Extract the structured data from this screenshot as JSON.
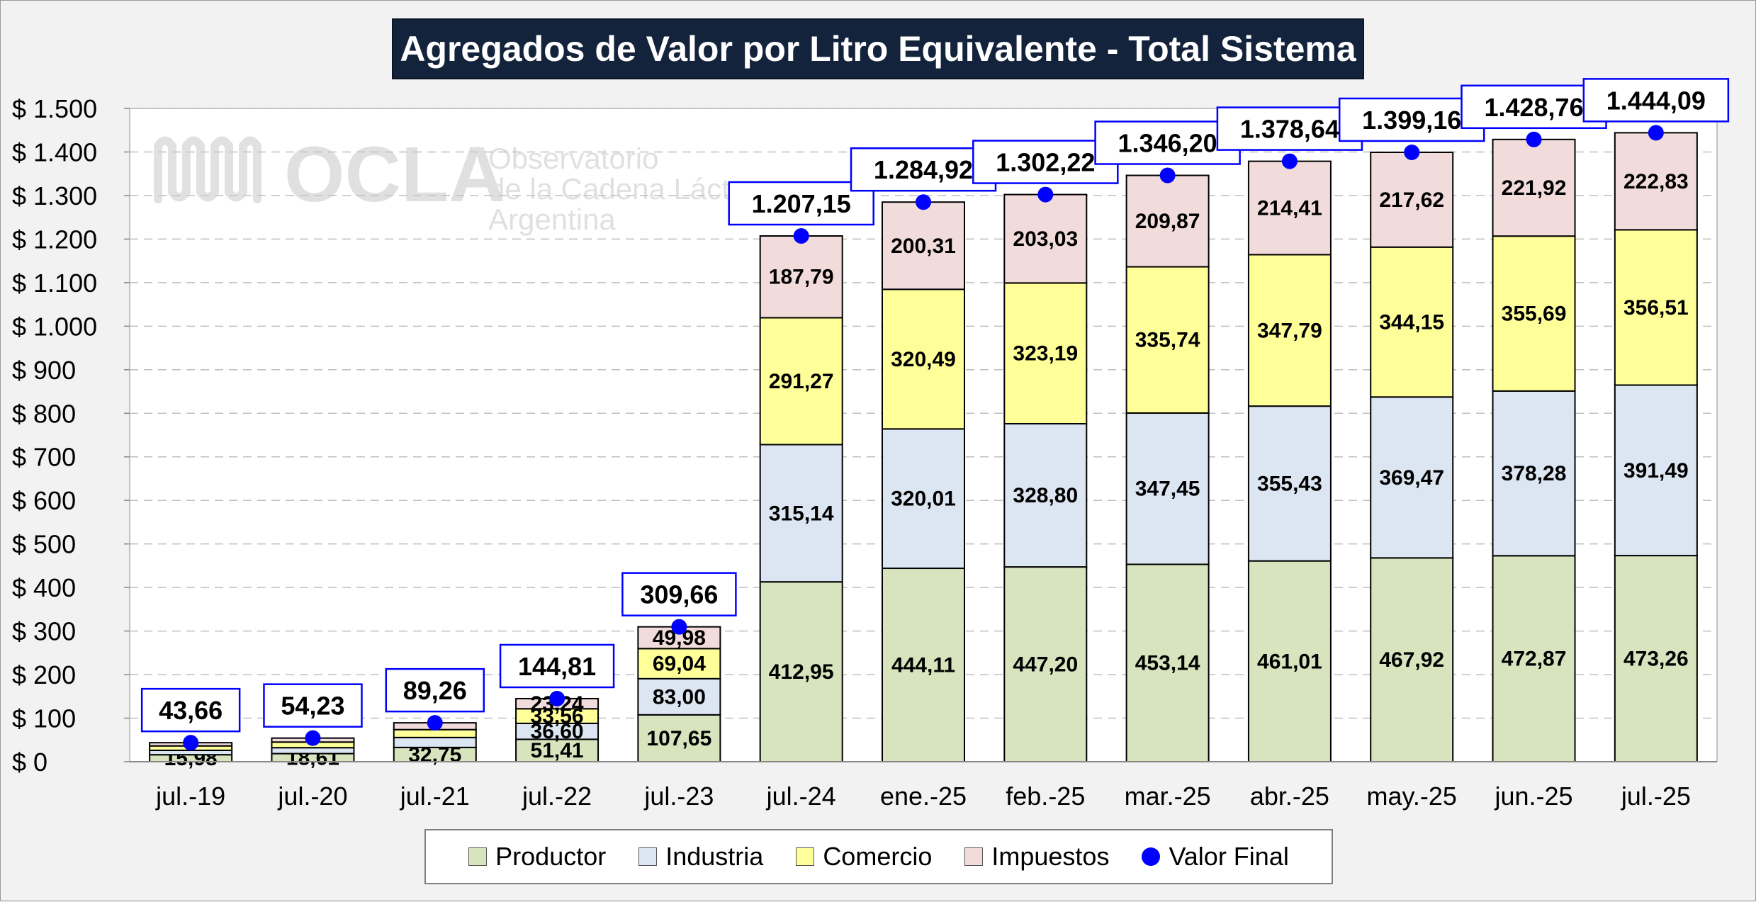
{
  "chart_data": {
    "type": "bar",
    "stacked": true,
    "title": "Agregados de Valor por Litro Equivalente - Total Sistema",
    "categories": [
      "jul.-19",
      "jul.-20",
      "jul.-21",
      "jul.-22",
      "jul.-23",
      "jul.-24",
      "ene.-25",
      "feb.-25",
      "mar.-25",
      "abr.-25",
      "may.-25",
      "jun.-25",
      "jul.-25"
    ],
    "series": [
      {
        "name": "Productor",
        "color": "#d7e4bd",
        "values": [
          15.98,
          18.61,
          32.75,
          51.41,
          107.65,
          412.95,
          444.11,
          447.2,
          453.14,
          461.01,
          467.92,
          472.87,
          473.26
        ],
        "labels": [
          "15,98",
          "18,61",
          "32,75",
          "51,41",
          "107,65",
          "412,95",
          "444,11",
          "447,20",
          "453,14",
          "461,01",
          "467,92",
          "472,87",
          "473,26"
        ]
      },
      {
        "name": "Industria",
        "color": "#dce6f2",
        "values": [
          10.12,
          13.6,
          22.83,
          36.6,
          83.0,
          315.14,
          320.01,
          328.8,
          347.45,
          355.43,
          369.47,
          378.28,
          391.49
        ],
        "labels": [
          "",
          "",
          "",
          "36,60",
          "83,00",
          "315,14",
          "320,01",
          "328,80",
          "347,45",
          "355,43",
          "369,47",
          "378,28",
          "391,49"
        ]
      },
      {
        "name": "Comercio",
        "color": "#ffff99",
        "values": [
          10.2,
          12.9,
          18.13,
          33.56,
          69.04,
          291.27,
          320.49,
          323.19,
          335.74,
          347.79,
          344.15,
          355.69,
          356.51
        ],
        "labels": [
          "",
          "",
          "",
          "33,56",
          "69,04",
          "291,27",
          "320,49",
          "323,19",
          "335,74",
          "347,79",
          "344,15",
          "355,69",
          "356,51"
        ]
      },
      {
        "name": "Impuestos",
        "color": "#f2dcdb",
        "values": [
          7.36,
          9.12,
          15.55,
          23.24,
          49.98,
          187.79,
          200.31,
          203.03,
          209.87,
          214.41,
          217.62,
          221.92,
          222.83
        ],
        "labels": [
          "",
          "",
          "",
          "23,24",
          "49,98",
          "187,79",
          "200,31",
          "203,03",
          "209,87",
          "214,41",
          "217,62",
          "221,92",
          "222,83"
        ]
      }
    ],
    "total_series": {
      "name": "Valor Final",
      "color": "#0000ff",
      "values": [
        43.66,
        54.23,
        89.26,
        144.81,
        309.66,
        1207.15,
        1284.92,
        1302.22,
        1346.2,
        1378.64,
        1399.16,
        1428.76,
        1444.09
      ],
      "labels": [
        "43,66",
        "54,23",
        "89,26",
        "144,81",
        "309,66",
        "1.207,15",
        "1.284,92",
        "1.302,22",
        "1.346,20",
        "1.378,64",
        "1.399,16",
        "1.428,76",
        "1.444,09"
      ]
    },
    "y_ticks": [
      0,
      100,
      200,
      300,
      400,
      500,
      600,
      700,
      800,
      900,
      1000,
      1100,
      1200,
      1300,
      1400,
      1500
    ],
    "y_tick_labels": [
      "$ 0",
      "$ 100",
      "$ 200",
      "$ 300",
      "$ 400",
      "$ 500",
      "$ 600",
      "$ 700",
      "$ 800",
      "$ 900",
      "$ 1.000",
      "$ 1.100",
      "$ 1.200",
      "$ 1.300",
      "$ 1.400",
      "$ 1.500"
    ],
    "ylim": [
      0,
      1500
    ],
    "grid": true,
    "legend": "bottom"
  },
  "watermark": {
    "logo": "OCLA",
    "line1": "Observatorio",
    "line2": "de la Cadena Láctea",
    "line3": "Argentina"
  }
}
